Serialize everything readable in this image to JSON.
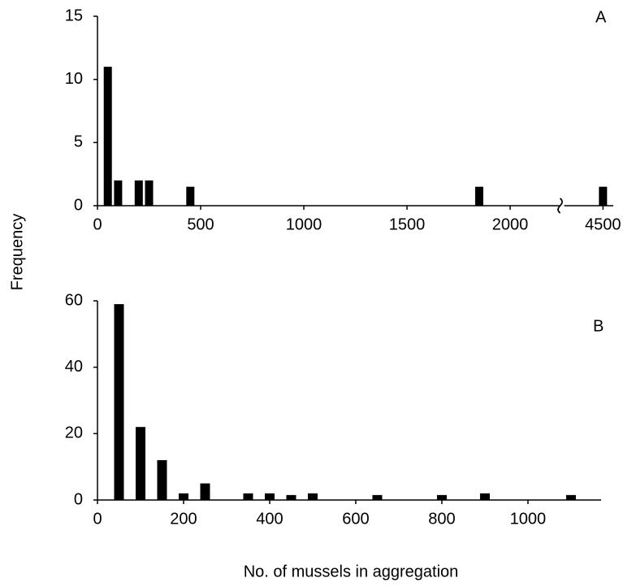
{
  "ylabel": "Frequency",
  "xlabel": "No. of mussels in aggregation",
  "chart_data": [
    {
      "type": "bar",
      "panel_label": "A",
      "color": "#000000",
      "x": [
        50,
        100,
        200,
        250,
        450,
        1850,
        4500
      ],
      "values": [
        11,
        2,
        2,
        2,
        1.5,
        1.5,
        1.5
      ],
      "xlim": [
        0,
        4550
      ],
      "xbreak": [
        2250,
        4300
      ],
      "xticks": [
        0,
        500,
        1000,
        1500,
        2000,
        4500
      ],
      "ylim": [
        0,
        15
      ],
      "yticks": [
        0,
        5,
        10,
        15
      ]
    },
    {
      "type": "bar",
      "panel_label": "B",
      "color": "#000000",
      "x": [
        50,
        100,
        150,
        200,
        250,
        350,
        400,
        450,
        500,
        650,
        800,
        900,
        1100
      ],
      "values": [
        59,
        22,
        12,
        2,
        5,
        2,
        2,
        1.5,
        2,
        1.5,
        1.5,
        2,
        1.5
      ],
      "xlim": [
        0,
        1170
      ],
      "xticks": [
        0,
        200,
        400,
        600,
        800,
        1000
      ],
      "ylim": [
        0,
        60
      ],
      "yticks": [
        0,
        20,
        40,
        60
      ]
    }
  ]
}
